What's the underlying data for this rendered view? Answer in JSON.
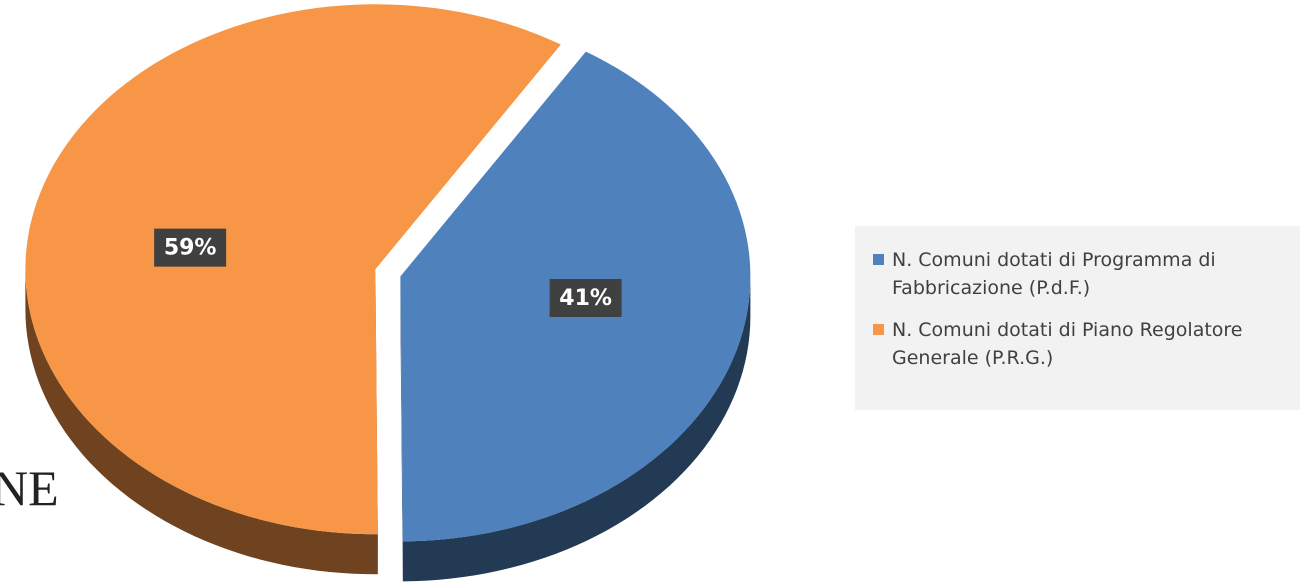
{
  "chart_data": {
    "type": "pie",
    "categories": [
      "N. Comuni dotati di Programma di Fabbricazione (P.d.F.)",
      "N. Comuni dotati di Piano Regolatore Generale (P.R.G.)"
    ],
    "values": [
      41,
      59
    ],
    "value_labels": [
      "41%",
      "59%"
    ],
    "colors": [
      "#4f81bd",
      "#f79646"
    ],
    "legend": "right",
    "annotations": [
      "NE"
    ]
  }
}
